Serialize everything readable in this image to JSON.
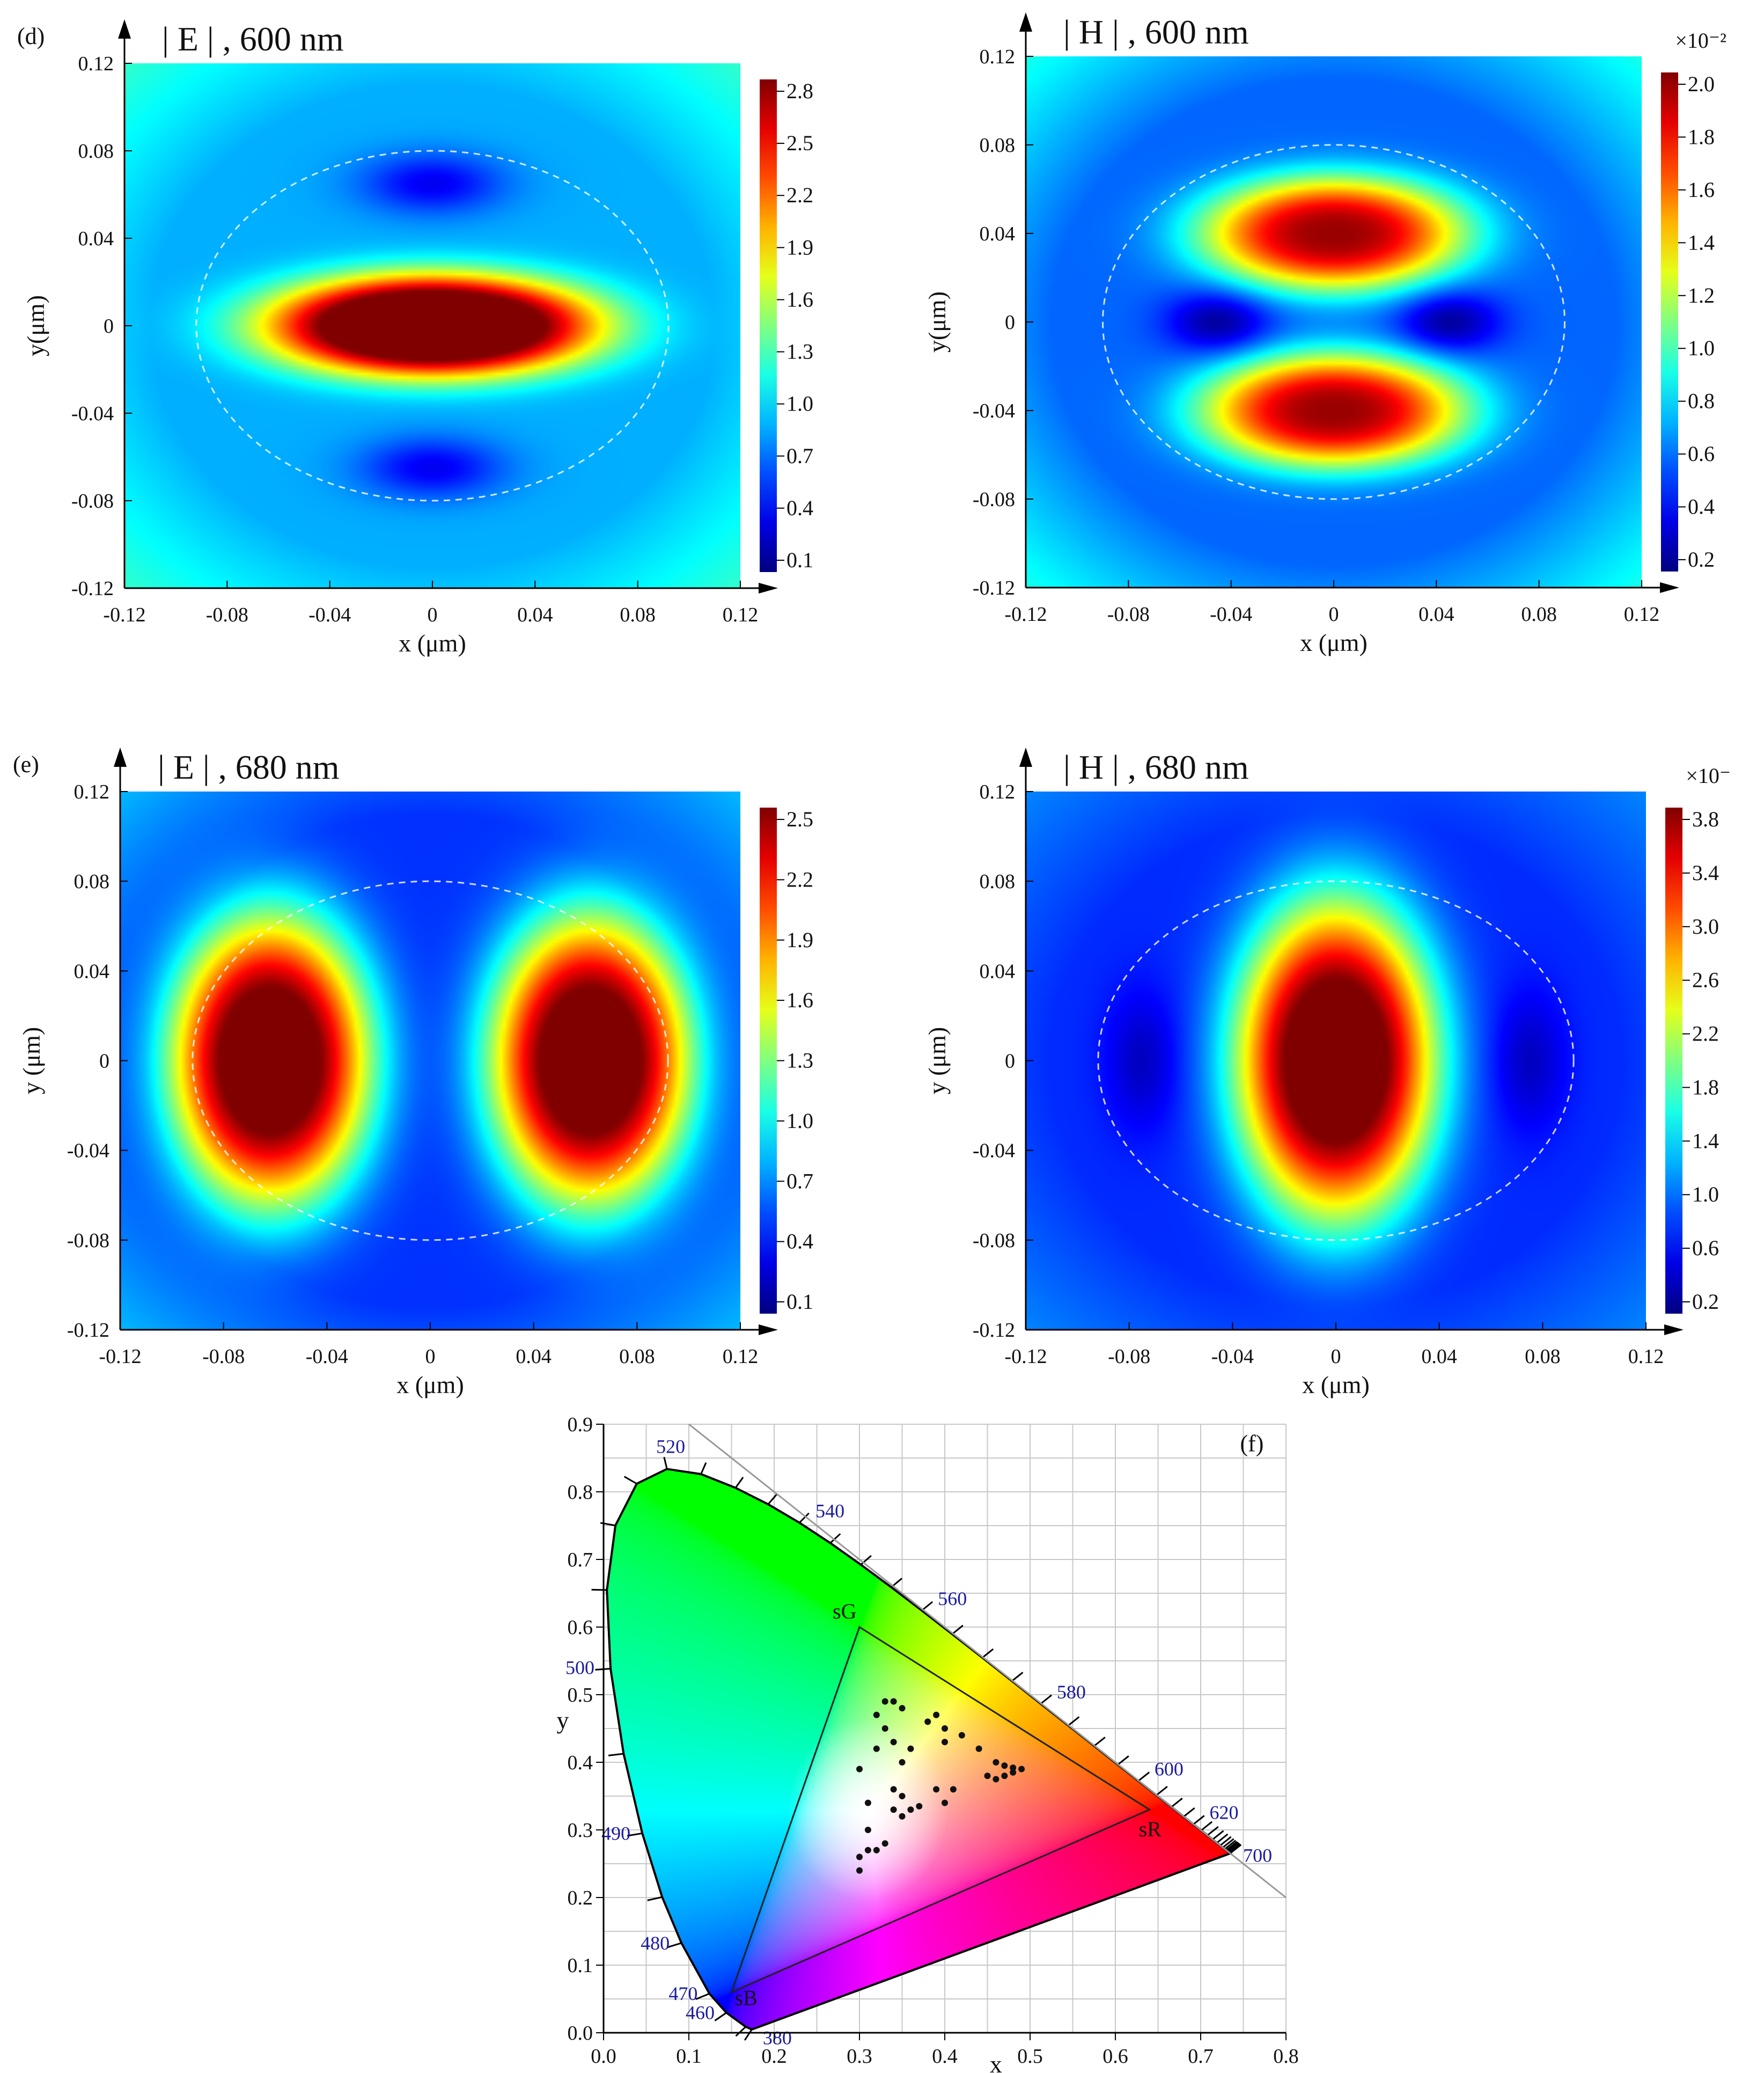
{
  "panels": [
    {
      "id": "d-E",
      "panel_label": "(d)",
      "title": "| E | , 600 nm",
      "xlabel": "x (μm)",
      "ylabel": "y(μm)",
      "xticks": [
        "-0.12",
        "-0.08",
        "-0.04",
        "0",
        "0.04",
        "0.08",
        "0.12"
      ],
      "yticks": [
        "0.12",
        "0.08",
        "0.04",
        "0",
        "-0.04",
        "-0.08",
        "-0.12"
      ],
      "colorbar": {
        "ticks": [
          "2.8",
          "2.5",
          "2.2",
          "1.9",
          "1.6",
          "1.3",
          "1.0",
          "0.7",
          "0.4",
          "0.1"
        ],
        "exponent": ""
      }
    },
    {
      "id": "d-H",
      "panel_label": "",
      "title": "| H | , 600 nm",
      "xlabel": "x (μm)",
      "ylabel": "y(μm)",
      "xticks": [
        "-0.12",
        "-0.08",
        "-0.04",
        "0",
        "0.04",
        "0.08",
        "0.12"
      ],
      "yticks": [
        "0.12",
        "0.08",
        "0.04",
        "0",
        "-0.04",
        "-0.08",
        "-0.12"
      ],
      "colorbar": {
        "ticks": [
          "2.0",
          "1.8",
          "1.6",
          "1.4",
          "1.2",
          "1.0",
          "0.8",
          "0.6",
          "0.4",
          "0.2"
        ],
        "exponent": "×10⁻²"
      }
    },
    {
      "id": "e-E",
      "panel_label": "(e)",
      "title": "| E | , 680 nm",
      "xlabel": "x (μm)",
      "ylabel": "y (μm)",
      "xticks": [
        "-0.12",
        "-0.08",
        "-0.04",
        "0",
        "0.04",
        "0.08",
        "0.12"
      ],
      "yticks": [
        "0.12",
        "0.08",
        "0.04",
        "0",
        "-0.04",
        "-0.08",
        "-0.12"
      ],
      "colorbar": {
        "ticks": [
          "2.5",
          "2.2",
          "1.9",
          "1.6",
          "1.3",
          "1.0",
          "0.7",
          "0.4",
          "0.1"
        ],
        "exponent": ""
      }
    },
    {
      "id": "e-H",
      "panel_label": "",
      "title": "| H | , 680 nm",
      "xlabel": "x (μm)",
      "ylabel": "y (μm)",
      "xticks": [
        "-0.12",
        "-0.08",
        "-0.04",
        "0",
        "0.04",
        "0.08",
        "0.12"
      ],
      "yticks": [
        "0.12",
        "0.08",
        "0.04",
        "0",
        "-0.04",
        "-0.08",
        "-0.12"
      ],
      "colorbar": {
        "ticks": [
          "3.8",
          "3.4",
          "3.0",
          "2.6",
          "2.2",
          "1.8",
          "1.4",
          "1.0",
          "0.6",
          "0.2"
        ],
        "exponent": "×10⁻"
      }
    }
  ],
  "chart_data": [
    {
      "type": "heatmap",
      "id": "d-E",
      "title": "| E | , 600 nm",
      "xlabel": "x (μm)",
      "ylabel": "y(μm)",
      "xlim": [
        -0.12,
        0.12
      ],
      "ylim": [
        -0.12,
        0.12
      ],
      "colorbar_range": [
        0.1,
        2.8
      ],
      "colormap": "jet",
      "features": [
        {
          "shape": "gaussian",
          "x": 0,
          "y": 0,
          "sx": 0.05,
          "sy": 0.018,
          "amp": 2.7
        },
        {
          "shape": "gaussian",
          "x": 0,
          "y": 0.065,
          "sx": 0.02,
          "sy": 0.01,
          "amp": -0.5
        },
        {
          "shape": "gaussian",
          "x": 0,
          "y": -0.065,
          "sx": 0.02,
          "sy": 0.01,
          "amp": -0.5
        }
      ],
      "background": 0.9,
      "outline": {
        "rx": 0.092,
        "ry": 0.08
      }
    },
    {
      "type": "heatmap",
      "id": "d-H",
      "title": "| H | , 600 nm",
      "xlabel": "x (μm)",
      "ylabel": "y(μm)",
      "xlim": [
        -0.12,
        0.12
      ],
      "ylim": [
        -0.12,
        0.12
      ],
      "colorbar_range": [
        0.1,
        2.1
      ],
      "colorbar_exponent": "×10⁻²",
      "colormap": "jet",
      "features": [
        {
          "shape": "gaussian",
          "x": 0,
          "y": 0.04,
          "sx": 0.04,
          "sy": 0.02,
          "amp": 1.5
        },
        {
          "shape": "gaussian",
          "x": 0,
          "y": -0.04,
          "sx": 0.04,
          "sy": 0.02,
          "amp": 1.5
        },
        {
          "shape": "gaussian",
          "x": -0.045,
          "y": 0,
          "sx": 0.014,
          "sy": 0.01,
          "amp": -0.4
        },
        {
          "shape": "gaussian",
          "x": 0.045,
          "y": 0,
          "sx": 0.014,
          "sy": 0.01,
          "amp": -0.4
        }
      ],
      "background": 0.55,
      "outline": {
        "rx": 0.09,
        "ry": 0.08
      }
    },
    {
      "type": "heatmap",
      "id": "e-E",
      "title": "| E | , 680 nm",
      "xlabel": "x (μm)",
      "ylabel": "y (μm)",
      "xlim": [
        -0.12,
        0.12
      ],
      "ylim": [
        -0.12,
        0.12
      ],
      "colorbar_range": [
        0.1,
        2.7
      ],
      "colormap": "jet",
      "features": [
        {
          "shape": "gaussian",
          "x": -0.062,
          "y": 0,
          "sx": 0.03,
          "sy": 0.05,
          "amp": 2.5
        },
        {
          "shape": "gaussian",
          "x": 0.062,
          "y": 0,
          "sx": 0.03,
          "sy": 0.05,
          "amp": 2.5
        }
      ],
      "background": 0.55,
      "outline": {
        "rx": 0.092,
        "ry": 0.08
      }
    },
    {
      "type": "heatmap",
      "id": "e-H",
      "title": "| H | , 680 nm",
      "xlabel": "x (μm)",
      "ylabel": "y (μm)",
      "xlim": [
        -0.12,
        0.12
      ],
      "ylim": [
        -0.12,
        0.12
      ],
      "colorbar_range": [
        0.1,
        4.0
      ],
      "colorbar_exponent": "×10⁻",
      "colormap": "jet",
      "features": [
        {
          "shape": "gaussian",
          "x": 0,
          "y": 0,
          "sx": 0.03,
          "sy": 0.055,
          "amp": 3.8
        },
        {
          "shape": "gaussian",
          "x": -0.075,
          "y": 0,
          "sx": 0.01,
          "sy": 0.022,
          "amp": -0.4
        },
        {
          "shape": "gaussian",
          "x": 0.075,
          "y": 0,
          "sx": 0.01,
          "sy": 0.022,
          "amp": -0.4
        }
      ],
      "background": 0.75,
      "outline": {
        "rx": 0.092,
        "ry": 0.08
      }
    },
    {
      "type": "scatter",
      "id": "f-cie",
      "panel_label": "(f)",
      "xlabel": "x",
      "ylabel": "y",
      "xlim": [
        0.0,
        0.8
      ],
      "ylim": [
        0.0,
        0.9
      ],
      "xticks": [
        "0.0",
        "0.1",
        "0.2",
        "0.3",
        "0.4",
        "0.5",
        "0.6",
        "0.7",
        "0.8"
      ],
      "yticks": [
        "0.0",
        "0.1",
        "0.2",
        "0.3",
        "0.4",
        "0.5",
        "0.6",
        "0.7",
        "0.8",
        "0.9"
      ],
      "grid": true,
      "spectral_locus": [
        [
          0.1741,
          0.005
        ],
        [
          0.1738,
          0.0049
        ],
        [
          0.1666,
          0.0089
        ],
        [
          0.144,
          0.0297
        ],
        [
          0.1241,
          0.0578
        ],
        [
          0.0913,
          0.1327
        ],
        [
          0.0687,
          0.2007
        ],
        [
          0.0454,
          0.295
        ],
        [
          0.0235,
          0.4127
        ],
        [
          0.0082,
          0.5384
        ],
        [
          0.0039,
          0.6548
        ],
        [
          0.0139,
          0.7502
        ],
        [
          0.0389,
          0.812
        ],
        [
          0.0743,
          0.8338
        ],
        [
          0.1142,
          0.8262
        ],
        [
          0.1547,
          0.8059
        ],
        [
          0.1929,
          0.7816
        ],
        [
          0.2296,
          0.7543
        ],
        [
          0.2658,
          0.7243
        ],
        [
          0.3016,
          0.6923
        ],
        [
          0.3373,
          0.6589
        ],
        [
          0.3731,
          0.6245
        ],
        [
          0.4087,
          0.5896
        ],
        [
          0.4441,
          0.5547
        ],
        [
          0.4788,
          0.5202
        ],
        [
          0.5125,
          0.4866
        ],
        [
          0.5448,
          0.4544
        ],
        [
          0.5752,
          0.4242
        ],
        [
          0.6029,
          0.3965
        ],
        [
          0.627,
          0.3725
        ],
        [
          0.6482,
          0.3514
        ],
        [
          0.6658,
          0.334
        ],
        [
          0.6801,
          0.3197
        ],
        [
          0.6915,
          0.3083
        ],
        [
          0.7006,
          0.2993
        ],
        [
          0.7079,
          0.292
        ],
        [
          0.714,
          0.2859
        ],
        [
          0.719,
          0.2809
        ],
        [
          0.723,
          0.277
        ],
        [
          0.726,
          0.274
        ],
        [
          0.7283,
          0.2717
        ],
        [
          0.73,
          0.27
        ],
        [
          0.7311,
          0.2689
        ],
        [
          0.732,
          0.268
        ],
        [
          0.7327,
          0.2673
        ],
        [
          0.7334,
          0.2666
        ],
        [
          0.734,
          0.266
        ],
        [
          0.7344,
          0.2656
        ],
        [
          0.7346,
          0.2654
        ],
        [
          0.7347,
          0.2653
        ]
      ],
      "wavelength_labels": [
        {
          "text": "520",
          "x": 0.0743,
          "y": 0.8338
        },
        {
          "text": "540",
          "x": 0.2296,
          "y": 0.7543
        },
        {
          "text": "560",
          "x": 0.3731,
          "y": 0.6245
        },
        {
          "text": "580",
          "x": 0.5125,
          "y": 0.4866
        },
        {
          "text": "600",
          "x": 0.627,
          "y": 0.3725
        },
        {
          "text": "620",
          "x": 0.6915,
          "y": 0.3083
        },
        {
          "text": "700",
          "x": 0.7347,
          "y": 0.2653
        },
        {
          "text": "500",
          "x": 0.0082,
          "y": 0.5384
        },
        {
          "text": "490",
          "x": 0.0454,
          "y": 0.295
        },
        {
          "text": "480",
          "x": 0.0913,
          "y": 0.1327
        },
        {
          "text": "470",
          "x": 0.1241,
          "y": 0.0578
        },
        {
          "text": "460",
          "x": 0.144,
          "y": 0.0297
        },
        {
          "text": "380",
          "x": 0.1741,
          "y": 0.005
        }
      ],
      "gamut": {
        "sR": [
          0.64,
          0.33
        ],
        "sG": [
          0.3,
          0.6
        ],
        "sB": [
          0.15,
          0.06
        ],
        "labels": [
          "sR",
          "sG",
          "sB"
        ]
      },
      "points": [
        [
          0.33,
          0.49
        ],
        [
          0.34,
          0.49
        ],
        [
          0.32,
          0.47
        ],
        [
          0.35,
          0.48
        ],
        [
          0.39,
          0.47
        ],
        [
          0.38,
          0.46
        ],
        [
          0.4,
          0.45
        ],
        [
          0.42,
          0.44
        ],
        [
          0.33,
          0.45
        ],
        [
          0.34,
          0.43
        ],
        [
          0.36,
          0.42
        ],
        [
          0.4,
          0.43
        ],
        [
          0.44,
          0.42
        ],
        [
          0.32,
          0.42
        ],
        [
          0.3,
          0.39
        ],
        [
          0.35,
          0.4
        ],
        [
          0.46,
          0.4
        ],
        [
          0.47,
          0.395
        ],
        [
          0.48,
          0.392
        ],
        [
          0.49,
          0.39
        ],
        [
          0.48,
          0.385
        ],
        [
          0.47,
          0.38
        ],
        [
          0.46,
          0.375
        ],
        [
          0.45,
          0.38
        ],
        [
          0.34,
          0.36
        ],
        [
          0.35,
          0.35
        ],
        [
          0.39,
          0.36
        ],
        [
          0.41,
          0.36
        ],
        [
          0.31,
          0.34
        ],
        [
          0.34,
          0.33
        ],
        [
          0.36,
          0.33
        ],
        [
          0.37,
          0.335
        ],
        [
          0.4,
          0.34
        ],
        [
          0.35,
          0.32
        ],
        [
          0.31,
          0.3
        ],
        [
          0.33,
          0.28
        ],
        [
          0.32,
          0.27
        ],
        [
          0.3,
          0.26
        ],
        [
          0.3,
          0.24
        ],
        [
          0.31,
          0.27
        ]
      ]
    }
  ]
}
